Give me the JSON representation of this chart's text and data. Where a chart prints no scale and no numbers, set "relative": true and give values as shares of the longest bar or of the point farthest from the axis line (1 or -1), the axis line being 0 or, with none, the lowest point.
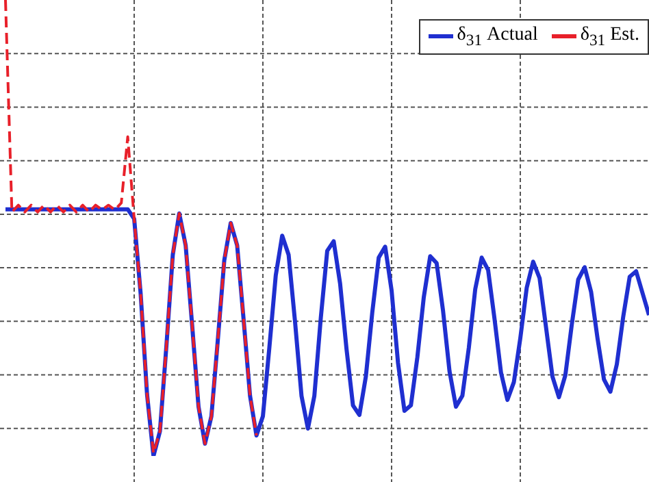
{
  "chart_data": {
    "type": "line",
    "relative": true,
    "grid": true,
    "legend": "top right",
    "marker": "none",
    "categories": [
      null,
      null,
      null,
      null,
      null,
      null,
      null,
      null,
      null,
      null,
      null,
      null,
      null,
      null,
      null,
      null,
      null,
      null,
      null,
      null,
      null,
      null,
      null,
      null,
      null,
      null,
      null,
      null,
      null,
      null,
      null,
      null,
      null,
      null,
      null,
      null,
      null,
      null,
      null,
      null,
      null,
      null,
      null,
      null,
      null,
      null,
      null,
      null,
      null,
      null,
      null,
      null,
      null,
      null,
      null,
      null,
      null,
      null,
      null,
      null,
      null,
      null,
      null,
      null,
      null,
      null,
      null,
      null,
      null,
      null,
      null,
      null,
      null,
      null,
      null,
      null,
      null,
      null,
      null,
      null,
      null,
      null,
      null,
      null,
      null,
      null,
      null,
      null,
      null,
      null,
      null,
      null,
      null,
      null,
      null,
      null,
      null,
      null,
      null,
      null,
      null
    ],
    "series": [
      {
        "name": "δ$_{31}$ Actual",
        "color": "#1f2fd0",
        "line_style": "solid",
        "values": [
          0.541,
          0.541,
          0.541,
          0.541,
          0.541,
          0.541,
          0.541,
          0.541,
          0.541,
          0.541,
          0.541,
          0.541,
          0.541,
          0.541,
          0.541,
          0.541,
          0.541,
          0.541,
          0.541,
          0.541,
          0.52,
          0.357,
          0.135,
          0,
          0.054,
          0.24,
          0.441,
          0.532,
          0.462,
          0.288,
          0.108,
          0.027,
          0.087,
          0.255,
          0.429,
          0.511,
          0.462,
          0.3,
          0.132,
          0.045,
          0.087,
          0.237,
          0.396,
          0.483,
          0.441,
          0.294,
          0.132,
          0.06,
          0.132,
          0.303,
          0.45,
          0.471,
          0.378,
          0.234,
          0.111,
          0.09,
          0.174,
          0.315,
          0.435,
          0.459,
          0.363,
          0.204,
          0.099,
          0.111,
          0.216,
          0.348,
          0.438,
          0.423,
          0.318,
          0.186,
          0.108,
          0.132,
          0.237,
          0.366,
          0.435,
          0.408,
          0.3,
          0.183,
          0.123,
          0.162,
          0.258,
          0.369,
          0.426,
          0.39,
          0.282,
          0.174,
          0.129,
          0.177,
          0.288,
          0.387,
          0.414,
          0.36,
          0.258,
          0.168,
          0.141,
          0.201,
          0.306,
          0.393,
          0.405,
          0.357,
          0.309
        ]
      },
      {
        "name": "δ$_{31}$ Est.",
        "color": "#e8202a",
        "line_style": "dashed",
        "values": [
          1,
          0.535,
          0.55,
          0.535,
          0.55,
          0.535,
          0.55,
          0.535,
          0.55,
          0.535,
          0.55,
          0.535,
          0.55,
          0.535,
          0.55,
          0.54,
          0.55,
          0.54,
          0.555,
          0.7,
          0.52,
          0.357,
          0.135,
          0.006,
          0.054,
          0.24,
          0.441,
          0.532,
          0.462,
          0.288,
          0.108,
          0.027,
          0.087,
          0.255,
          0.429,
          0.511,
          0.462,
          0.3,
          0.132,
          0.045,
          null,
          null,
          null,
          null,
          null,
          null,
          null,
          null,
          null,
          null,
          null,
          null,
          null,
          null,
          null,
          null,
          null,
          null,
          null,
          null,
          null,
          null,
          null,
          null,
          null,
          null,
          null,
          null,
          null,
          null,
          null,
          null,
          null,
          null,
          null,
          null,
          null,
          null,
          null,
          null,
          null,
          null,
          null,
          null,
          null,
          null,
          null,
          null,
          null,
          null,
          null,
          null,
          null,
          null,
          null,
          null,
          null,
          null,
          null,
          null,
          null
        ]
      }
    ]
  }
}
